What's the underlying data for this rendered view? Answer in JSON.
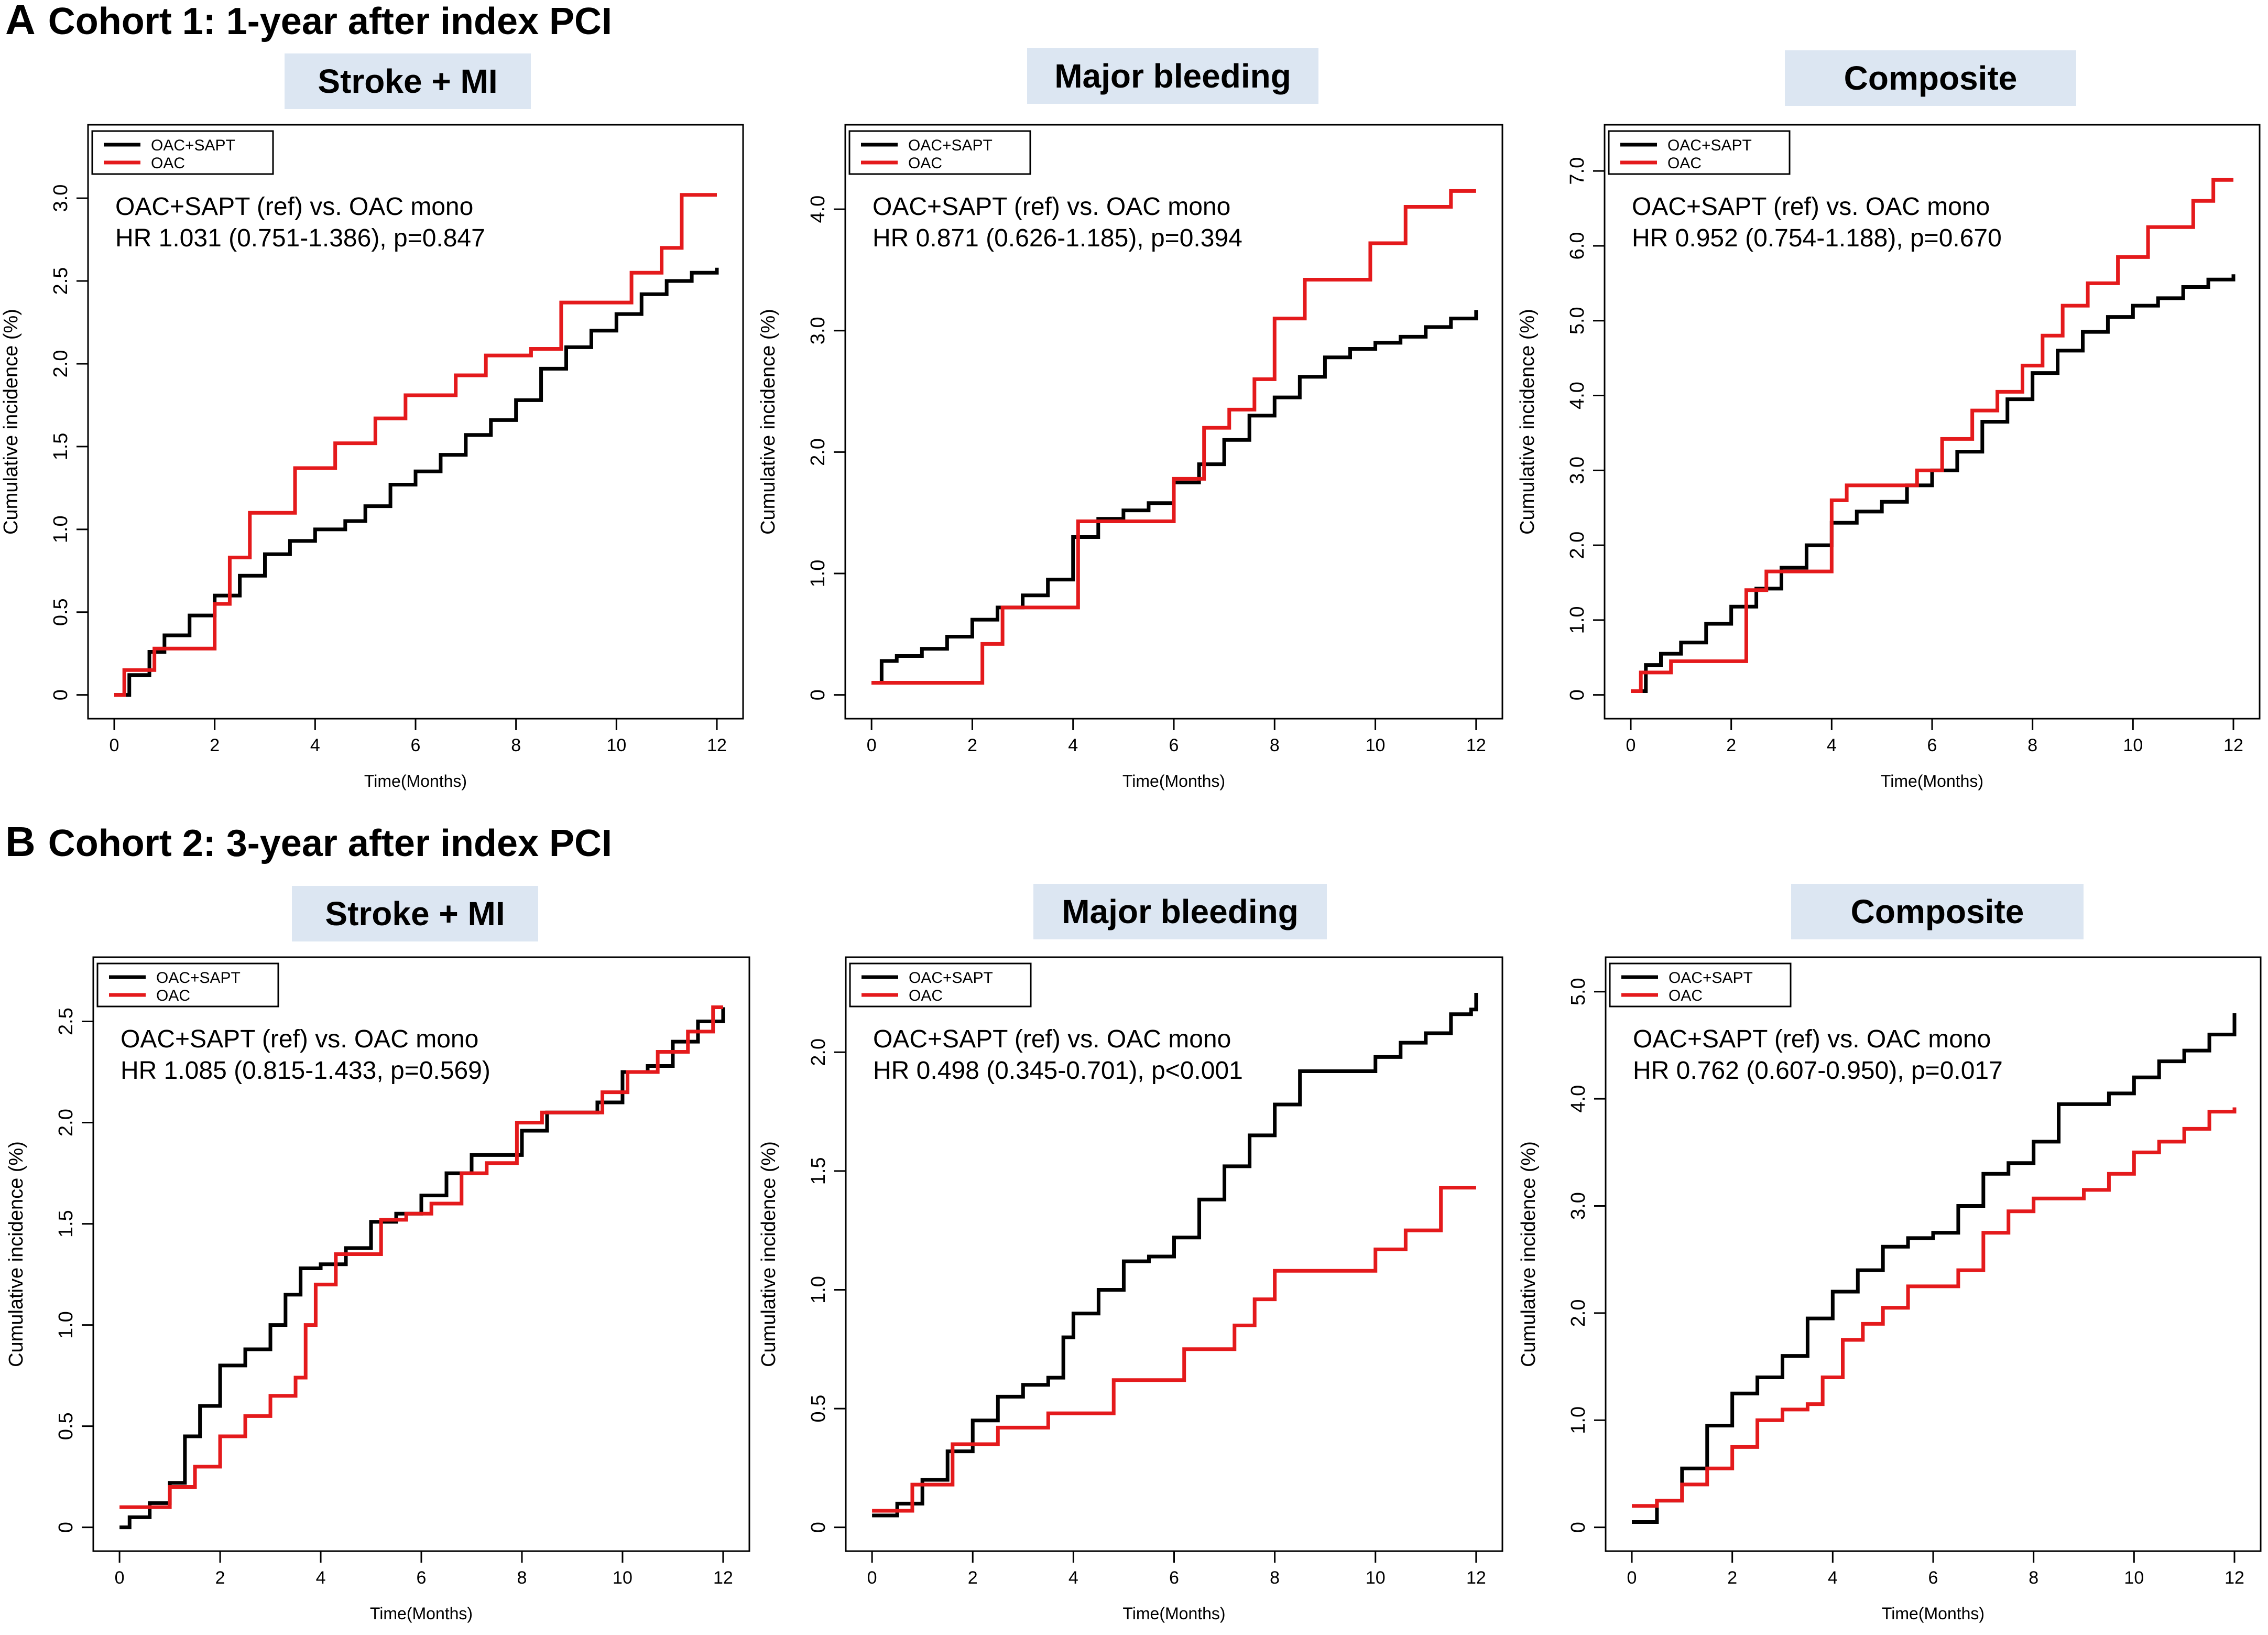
{
  "sections": [
    {
      "letter": "A",
      "title": "Cohort 1: 1-year after index PCI"
    },
    {
      "letter": "B",
      "title": "Cohort 2: 3-year after index PCI"
    }
  ],
  "colors": {
    "oac_sapt": "#000000",
    "oac": "#e41a1c",
    "title_bg": "#dce6f2"
  },
  "legend": {
    "oac_sapt": "OAC+SAPT",
    "oac": "OAC"
  },
  "comparison_label": "OAC+SAPT (ref) vs. OAC mono",
  "chart_data": [
    {
      "type": "line",
      "panel_title": "Stroke + MI",
      "xlabel": "Time(Months)",
      "ylabel": "Cumulative incidence (%)",
      "xlim": [
        0,
        12
      ],
      "ylim": [
        0,
        3.3
      ],
      "xticks": [
        0,
        2,
        4,
        6,
        8,
        10,
        12
      ],
      "xtick_labels": [
        "0",
        "2",
        "4",
        "6",
        "8",
        "10",
        "12"
      ],
      "yticks": [
        0,
        0.5,
        1.0,
        1.5,
        2.0,
        2.5,
        3.0
      ],
      "ytick_labels": [
        "0",
        "0.5",
        "1.0",
        "1.5",
        "2.0",
        "2.5",
        "3.0"
      ],
      "annotation_hr": "HR 1.031 (0.751-1.386), p=0.847",
      "series": [
        {
          "name": "OAC+SAPT",
          "x": [
            0,
            0.3,
            0.7,
            1.0,
            1.5,
            2.0,
            2.5,
            3.0,
            3.5,
            4.0,
            4.6,
            5.0,
            5.5,
            6.0,
            6.5,
            7.0,
            7.5,
            8.0,
            8.5,
            9.0,
            9.5,
            10.0,
            10.5,
            11.0,
            11.5,
            12.0
          ],
          "y": [
            0,
            0.12,
            0.26,
            0.36,
            0.48,
            0.6,
            0.72,
            0.85,
            0.93,
            1.0,
            1.05,
            1.14,
            1.27,
            1.35,
            1.45,
            1.57,
            1.66,
            1.78,
            1.97,
            2.1,
            2.2,
            2.3,
            2.42,
            2.5,
            2.55,
            2.58
          ]
        },
        {
          "name": "OAC",
          "x": [
            0,
            0.2,
            0.8,
            2.0,
            2.3,
            2.7,
            3.6,
            4.4,
            5.2,
            5.8,
            6.8,
            7.4,
            8.3,
            8.9,
            9.6,
            10.3,
            10.9,
            11.3,
            12.0
          ],
          "y": [
            0,
            0.15,
            0.28,
            0.55,
            0.83,
            1.1,
            1.37,
            1.52,
            1.67,
            1.81,
            1.93,
            2.05,
            2.09,
            2.37,
            2.37,
            2.55,
            2.7,
            3.02,
            3.02
          ]
        }
      ]
    },
    {
      "type": "line",
      "panel_title": "Major bleeding",
      "xlabel": "Time(Months)",
      "ylabel": "Cumulative incidence (%)",
      "xlim": [
        0,
        12
      ],
      "ylim": [
        0,
        4.5
      ],
      "xticks": [
        0,
        2,
        4,
        6,
        8,
        10,
        12
      ],
      "xtick_labels": [
        "0",
        "2",
        "4",
        "6",
        "8",
        "10",
        "12"
      ],
      "yticks": [
        0,
        1.0,
        2.0,
        3.0,
        4.0
      ],
      "ytick_labels": [
        "0",
        "1.0",
        "2.0",
        "3.0",
        "4.0"
      ],
      "annotation_hr": "HR 0.871 (0.626-1.185), p=0.394",
      "series": [
        {
          "name": "OAC+SAPT",
          "x": [
            0,
            0.2,
            0.5,
            1.0,
            1.5,
            2.0,
            2.5,
            3.0,
            3.5,
            4.0,
            4.5,
            5.0,
            5.5,
            6.0,
            6.5,
            7.0,
            7.5,
            8.0,
            8.5,
            9.0,
            9.5,
            10.0,
            10.5,
            11.0,
            11.5,
            12.0
          ],
          "y": [
            0.1,
            0.28,
            0.32,
            0.38,
            0.48,
            0.62,
            0.72,
            0.82,
            0.95,
            1.3,
            1.45,
            1.52,
            1.58,
            1.75,
            1.9,
            2.1,
            2.3,
            2.45,
            2.62,
            2.78,
            2.85,
            2.9,
            2.95,
            3.03,
            3.1,
            3.17
          ]
        },
        {
          "name": "OAC",
          "x": [
            0,
            1.7,
            2.2,
            2.6,
            3.7,
            4.1,
            4.6,
            5.5,
            6.0,
            6.6,
            7.1,
            7.6,
            8.0,
            8.6,
            9.2,
            9.9,
            10.6,
            11.5,
            12.0
          ],
          "y": [
            0.1,
            0.1,
            0.42,
            0.72,
            0.72,
            1.43,
            1.43,
            1.43,
            1.78,
            2.2,
            2.35,
            2.6,
            3.1,
            3.42,
            3.42,
            3.72,
            4.02,
            4.15,
            4.15
          ]
        }
      ]
    },
    {
      "type": "line",
      "panel_title": "Composite",
      "xlabel": "Time(Months)",
      "ylabel": "Cumulative incidence (%)",
      "xlim": [
        0,
        12
      ],
      "ylim": [
        0,
        7.3
      ],
      "xticks": [
        0,
        2,
        4,
        6,
        8,
        10,
        12
      ],
      "xtick_labels": [
        "0",
        "2",
        "4",
        "6",
        "8",
        "10",
        "12"
      ],
      "yticks": [
        0,
        1.0,
        2.0,
        3.0,
        4.0,
        5.0,
        6.0,
        7.0
      ],
      "ytick_labels": [
        "0",
        "1.0",
        "2.0",
        "3.0",
        "4.0",
        "5.0",
        "6.0",
        "7.0"
      ],
      "annotation_hr": "HR 0.952 (0.754-1.188), p=0.670",
      "series": [
        {
          "name": "OAC+SAPT",
          "x": [
            0,
            0.3,
            0.6,
            1.0,
            1.5,
            2.0,
            2.5,
            3.0,
            3.5,
            4.0,
            4.5,
            5.0,
            5.5,
            6.0,
            6.5,
            7.0,
            7.5,
            8.0,
            8.5,
            9.0,
            9.5,
            10.0,
            10.5,
            11.0,
            11.5,
            12.0
          ],
          "y": [
            0.05,
            0.4,
            0.55,
            0.7,
            0.95,
            1.18,
            1.42,
            1.7,
            2.0,
            2.3,
            2.45,
            2.58,
            2.8,
            3.0,
            3.25,
            3.65,
            3.95,
            4.3,
            4.6,
            4.85,
            5.05,
            5.2,
            5.3,
            5.45,
            5.55,
            5.62
          ]
        },
        {
          "name": "OAC",
          "x": [
            0,
            0.2,
            0.8,
            1.9,
            2.3,
            2.7,
            3.5,
            4.0,
            4.3,
            5.3,
            5.7,
            6.2,
            6.8,
            7.3,
            7.8,
            8.2,
            8.6,
            9.1,
            9.7,
            10.3,
            11.2,
            11.6,
            12.0
          ],
          "y": [
            0.05,
            0.3,
            0.45,
            0.45,
            1.4,
            1.65,
            1.65,
            2.6,
            2.8,
            2.8,
            3.0,
            3.42,
            3.8,
            4.05,
            4.4,
            4.8,
            5.2,
            5.5,
            5.85,
            6.25,
            6.6,
            6.88,
            6.88
          ]
        }
      ]
    },
    {
      "type": "line",
      "panel_title": "Stroke + MI",
      "xlabel": "Time(Months)",
      "ylabel": "Cumulative incidence (%)",
      "xlim": [
        0,
        12
      ],
      "ylim": [
        0,
        2.7
      ],
      "xticks": [
        0,
        2,
        4,
        6,
        8,
        10,
        12
      ],
      "xtick_labels": [
        "0",
        "2",
        "4",
        "6",
        "8",
        "10",
        "12"
      ],
      "yticks": [
        0,
        0.5,
        1.0,
        1.5,
        2.0,
        2.5
      ],
      "ytick_labels": [
        "0",
        "0.5",
        "1.0",
        "1.5",
        "2.0",
        "2.5"
      ],
      "annotation_hr": "HR 1.085 (0.815-1.433, p=0.569)",
      "series": [
        {
          "name": "OAC+SAPT",
          "x": [
            0,
            0.2,
            0.6,
            1.0,
            1.3,
            1.6,
            2.0,
            2.5,
            3.0,
            3.3,
            3.6,
            4.0,
            4.5,
            5.0,
            5.5,
            6.0,
            6.5,
            7.0,
            7.5,
            8.0,
            8.5,
            9.0,
            9.5,
            10.0,
            10.5,
            11.0,
            11.5,
            12.0
          ],
          "y": [
            0,
            0.05,
            0.12,
            0.22,
            0.45,
            0.6,
            0.8,
            0.88,
            1.0,
            1.15,
            1.28,
            1.3,
            1.38,
            1.51,
            1.55,
            1.64,
            1.75,
            1.84,
            1.84,
            1.96,
            2.05,
            2.05,
            2.1,
            2.25,
            2.28,
            2.4,
            2.5,
            2.57
          ]
        },
        {
          "name": "OAC",
          "x": [
            0,
            1.0,
            1.5,
            2.0,
            2.5,
            3.0,
            3.5,
            3.7,
            3.9,
            4.3,
            4.7,
            5.2,
            5.7,
            6.2,
            6.8,
            7.3,
            7.9,
            8.4,
            9.0,
            9.6,
            10.1,
            10.7,
            11.3,
            11.8,
            12.0
          ],
          "y": [
            0.1,
            0.2,
            0.3,
            0.45,
            0.55,
            0.65,
            0.74,
            1.0,
            1.2,
            1.35,
            1.35,
            1.52,
            1.55,
            1.6,
            1.75,
            1.8,
            2.0,
            2.05,
            2.05,
            2.15,
            2.25,
            2.35,
            2.45,
            2.57,
            2.57
          ]
        }
      ]
    },
    {
      "type": "line",
      "panel_title": "Major bleeding",
      "xlabel": "Time(Months)",
      "ylabel": "Cumulative incidence (%)",
      "xlim": [
        0,
        12
      ],
      "ylim": [
        0,
        2.3
      ],
      "xticks": [
        0,
        2,
        4,
        6,
        8,
        10,
        12
      ],
      "xtick_labels": [
        "0",
        "2",
        "4",
        "6",
        "8",
        "10",
        "12"
      ],
      "yticks": [
        0,
        0.5,
        1.0,
        1.5,
        2.0
      ],
      "ytick_labels": [
        "0",
        "0.5",
        "1.0",
        "1.5",
        "2.0"
      ],
      "annotation_hr": "HR 0.498 (0.345-0.701), p<0.001",
      "series": [
        {
          "name": "OAC+SAPT",
          "x": [
            0,
            0.5,
            1.0,
            1.5,
            2.0,
            2.5,
            3.0,
            3.5,
            3.8,
            4.0,
            4.5,
            5.0,
            5.5,
            6.0,
            6.5,
            7.0,
            7.5,
            8.0,
            8.5,
            9.0,
            9.5,
            10.0,
            10.5,
            11.0,
            11.5,
            11.9,
            12.0
          ],
          "y": [
            0.05,
            0.1,
            0.2,
            0.32,
            0.45,
            0.55,
            0.6,
            0.63,
            0.8,
            0.9,
            1.0,
            1.12,
            1.14,
            1.22,
            1.38,
            1.52,
            1.65,
            1.78,
            1.92,
            1.92,
            1.92,
            1.98,
            2.04,
            2.08,
            2.16,
            2.18,
            2.25
          ]
        },
        {
          "name": "OAC",
          "x": [
            0,
            0.8,
            1.6,
            2.5,
            3.5,
            4.8,
            6.2,
            7.2,
            7.6,
            8.0,
            9.0,
            10.0,
            10.6,
            11.3,
            12.0
          ],
          "y": [
            0.07,
            0.18,
            0.35,
            0.42,
            0.48,
            0.62,
            0.75,
            0.85,
            0.96,
            1.08,
            1.08,
            1.17,
            1.25,
            1.43,
            1.43
          ]
        }
      ]
    },
    {
      "type": "line",
      "panel_title": "Composite",
      "xlabel": "Time(Months)",
      "ylabel": "Cumulative incidence (%)",
      "xlim": [
        0,
        12
      ],
      "ylim": [
        0,
        5.1
      ],
      "xticks": [
        0,
        2,
        4,
        6,
        8,
        10,
        12
      ],
      "xtick_labels": [
        "0",
        "2",
        "4",
        "6",
        "8",
        "10",
        "12"
      ],
      "yticks": [
        0,
        1.0,
        2.0,
        3.0,
        4.0,
        5.0
      ],
      "ytick_labels": [
        "0",
        "1.0",
        "2.0",
        "3.0",
        "4.0",
        "5.0"
      ],
      "annotation_hr": "HR 0.762 (0.607-0.950), p=0.017",
      "series": [
        {
          "name": "OAC+SAPT",
          "x": [
            0,
            0.5,
            1.0,
            1.5,
            2.0,
            2.5,
            3.0,
            3.5,
            4.0,
            4.5,
            5.0,
            5.5,
            6.0,
            6.5,
            7.0,
            7.5,
            8.0,
            8.5,
            9.0,
            9.5,
            10.0,
            10.5,
            11.0,
            11.5,
            12.0
          ],
          "y": [
            0.05,
            0.25,
            0.55,
            0.95,
            1.25,
            1.4,
            1.6,
            1.95,
            2.2,
            2.4,
            2.62,
            2.7,
            2.75,
            3.0,
            3.3,
            3.4,
            3.6,
            3.95,
            3.95,
            4.05,
            4.2,
            4.35,
            4.45,
            4.6,
            4.8
          ]
        },
        {
          "name": "OAC",
          "x": [
            0,
            0.5,
            1.0,
            1.5,
            2.0,
            2.5,
            3.0,
            3.5,
            3.8,
            4.2,
            4.6,
            5.0,
            5.5,
            6.0,
            6.5,
            7.0,
            7.5,
            8.0,
            8.5,
            9.0,
            9.5,
            10.0,
            10.5,
            11.0,
            11.5,
            12.0
          ],
          "y": [
            0.2,
            0.25,
            0.4,
            0.55,
            0.75,
            1.0,
            1.1,
            1.15,
            1.4,
            1.75,
            1.9,
            2.05,
            2.25,
            2.25,
            2.4,
            2.75,
            2.95,
            3.07,
            3.07,
            3.15,
            3.3,
            3.5,
            3.6,
            3.72,
            3.88,
            3.92
          ]
        }
      ]
    }
  ]
}
